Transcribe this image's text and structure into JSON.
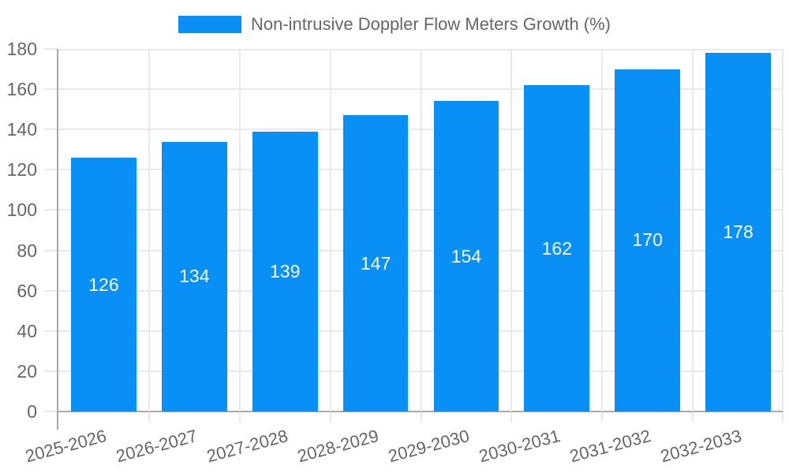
{
  "legend": {
    "label": "Non-intrusive Doppler Flow Meters Growth (%)"
  },
  "colors": {
    "bar": "#0890f7",
    "grid": "#e9e9e9",
    "axis": "#a9a9a9",
    "text": "#666666",
    "bar_label": "#ffffff",
    "background": "#ffffff"
  },
  "chart_data": {
    "type": "bar",
    "title": "",
    "xlabel": "",
    "ylabel": "",
    "categories": [
      "2025-2026",
      "2026-2027",
      "2027-2028",
      "2028-2029",
      "2029-2030",
      "2030-2031",
      "2031-2032",
      "2032-2033"
    ],
    "series": [
      {
        "name": "Non-intrusive Doppler Flow Meters Growth (%)",
        "values": [
          126,
          134,
          139,
          147,
          154,
          162,
          170,
          178
        ]
      }
    ],
    "bar_value_labels_shown": true,
    "ylim": [
      0,
      180
    ],
    "yticks": [
      0,
      20,
      40,
      60,
      80,
      100,
      120,
      140,
      160,
      180
    ],
    "grid": true,
    "legend_position": "top"
  }
}
